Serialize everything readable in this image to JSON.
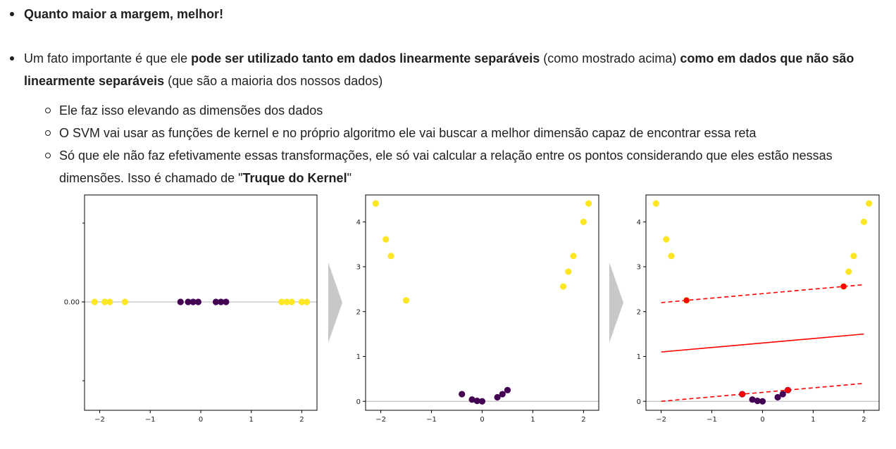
{
  "bullets": {
    "b1": {
      "bold": "Quanto maior a margem, melhor!"
    },
    "b2": {
      "t1": "Um fato importante é que ele ",
      "bold1": "pode ser utilizado tanto em dados linearmente separáveis",
      "t2": " (como mostrado acima) ",
      "bold2": "como em dados que não são linearmente separáveis",
      "t3": " (que são a maioria dos nossos dados)"
    },
    "sub": [
      {
        "text": "Ele faz isso elevando as dimensões dos dados"
      },
      {
        "text": "O SVM vai usar as funções de kernel e no próprio algoritmo ele vai buscar a melhor dimensão capaz de encontrar essa reta"
      },
      {
        "t1": "Só que ele não faz efetivamente essas transformações, ele só vai calcular a relação entre os pontos considerando que eles estão nessas dimensões. Isso é chamado de \"",
        "bold": "Truque do Kernel",
        "t2": "\""
      }
    ]
  },
  "chart_data": [
    {
      "type": "scatter",
      "title": "",
      "x": [
        -2.1,
        -1.9,
        -1.8,
        -1.5,
        -0.4,
        -0.25,
        -0.15,
        -0.05,
        0.3,
        0.4,
        0.5,
        1.6,
        1.7,
        1.8,
        2.0,
        2.1
      ],
      "y": [
        0,
        0,
        0,
        0,
        0,
        0,
        0,
        0,
        0,
        0,
        0,
        0,
        0,
        0,
        0,
        0
      ],
      "class": [
        1,
        1,
        1,
        1,
        0,
        0,
        0,
        0,
        0,
        0,
        0,
        1,
        1,
        1,
        1,
        1
      ],
      "xticks": [
        "−2",
        "−1",
        "0",
        "1",
        "2"
      ],
      "yticks": [
        "0.00"
      ],
      "xlim": [
        -2.3,
        2.3
      ]
    },
    {
      "type": "scatter",
      "title": "",
      "x": [
        -2.1,
        -1.9,
        -1.8,
        -1.5,
        -0.4,
        -0.2,
        -0.1,
        0.0,
        0.3,
        0.4,
        0.5,
        1.6,
        1.7,
        1.8,
        2.0,
        2.1
      ],
      "y": [
        4.41,
        3.61,
        3.24,
        2.25,
        0.16,
        0.04,
        0.01,
        0.0,
        0.09,
        0.16,
        0.25,
        2.56,
        2.89,
        3.24,
        4.0,
        4.41
      ],
      "class": [
        1,
        1,
        1,
        1,
        0,
        0,
        0,
        0,
        0,
        0,
        0,
        1,
        1,
        1,
        1,
        1
      ],
      "xticks": [
        "−2",
        "−1",
        "0",
        "1",
        "2"
      ],
      "yticks": [
        "0",
        "1",
        "2",
        "3",
        "4"
      ],
      "xlim": [
        -2.3,
        2.3
      ],
      "ylim": [
        -0.2,
        4.6
      ]
    },
    {
      "type": "scatter",
      "title": "",
      "x": [
        -2.1,
        -1.9,
        -1.8,
        -1.5,
        -0.4,
        -0.2,
        -0.1,
        0.0,
        0.3,
        0.4,
        0.5,
        1.6,
        1.7,
        1.8,
        2.0,
        2.1
      ],
      "y": [
        4.41,
        3.61,
        3.24,
        2.25,
        0.16,
        0.04,
        0.01,
        0.0,
        0.09,
        0.16,
        0.25,
        2.56,
        2.89,
        3.24,
        4.0,
        4.41
      ],
      "class": [
        1,
        1,
        1,
        1,
        0,
        0,
        0,
        0,
        0,
        0,
        0,
        1,
        1,
        1,
        1,
        1
      ],
      "support_vectors": [
        [
          -1.5,
          2.25
        ],
        [
          1.6,
          2.56
        ],
        [
          -0.4,
          0.16
        ],
        [
          0.5,
          0.25
        ]
      ],
      "lines": [
        {
          "style": "solid",
          "x": [
            -2.0,
            2.0
          ],
          "y": [
            1.1,
            1.5
          ]
        },
        {
          "style": "dashed",
          "x": [
            -2.0,
            2.0
          ],
          "y": [
            2.2,
            2.6
          ]
        },
        {
          "style": "dashed",
          "x": [
            -2.0,
            2.0
          ],
          "y": [
            0.0,
            0.4
          ]
        }
      ],
      "xticks": [
        "−2",
        "−1",
        "0",
        "1",
        "2"
      ],
      "yticks": [
        "0",
        "1",
        "2",
        "3",
        "4"
      ],
      "xlim": [
        -2.3,
        2.3
      ],
      "ylim": [
        -0.2,
        4.6
      ]
    }
  ],
  "colors": {
    "class0": "#440154",
    "class1": "#fde725",
    "sv": "#ff0000",
    "line": "#ff0000",
    "axis_ref": "#cccccc",
    "arrow": "#c8c8c8"
  }
}
